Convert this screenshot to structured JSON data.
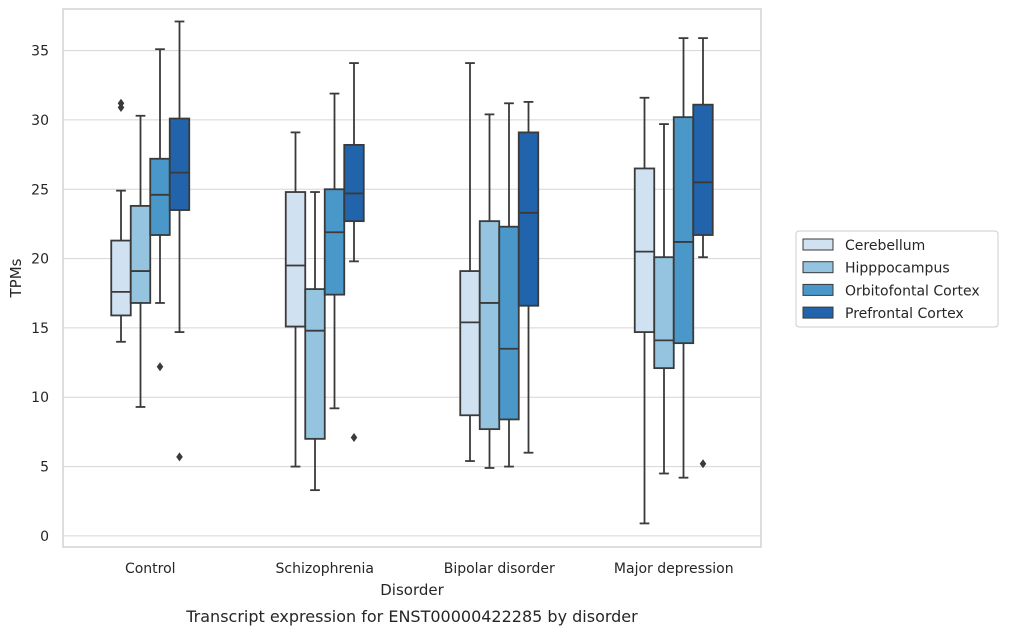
{
  "chart_data": {
    "type": "box",
    "title": "",
    "caption": "Transcript expression for ENST00000422285 by disorder",
    "xlabel": "Disorder",
    "ylabel": "TPMs",
    "ylim": [
      -0.8,
      38
    ],
    "yticks": [
      0,
      5,
      10,
      15,
      20,
      25,
      30,
      35
    ],
    "grid": "horizontal",
    "legend_position": "right",
    "categories": [
      "Control",
      "Schizophrenia",
      "Bipolar disorder",
      "Major depression"
    ],
    "series": [
      {
        "name": "Cerebellum",
        "color": "#d0e1f2",
        "boxes": [
          {
            "whislo": 14.0,
            "q1": 15.9,
            "med": 17.6,
            "q3": 21.3,
            "whishi": 24.9,
            "fliers": [
              31.2,
              30.9
            ]
          },
          {
            "whislo": 5.0,
            "q1": 15.1,
            "med": 19.5,
            "q3": 24.8,
            "whishi": 29.1,
            "fliers": []
          },
          {
            "whislo": 5.4,
            "q1": 8.7,
            "med": 15.4,
            "q3": 19.1,
            "whishi": 34.1,
            "fliers": []
          },
          {
            "whislo": 0.9,
            "q1": 14.7,
            "med": 20.5,
            "q3": 26.5,
            "whishi": 31.6,
            "fliers": []
          }
        ]
      },
      {
        "name": "Hipppocampus",
        "color": "#94c4df",
        "boxes": [
          {
            "whislo": 9.3,
            "q1": 16.8,
            "med": 19.1,
            "q3": 23.8,
            "whishi": 30.3,
            "fliers": []
          },
          {
            "whislo": 3.3,
            "q1": 7.0,
            "med": 14.8,
            "q3": 17.8,
            "whishi": 24.8,
            "fliers": []
          },
          {
            "whislo": 4.9,
            "q1": 7.7,
            "med": 16.8,
            "q3": 22.7,
            "whishi": 30.4,
            "fliers": []
          },
          {
            "whislo": 4.5,
            "q1": 12.1,
            "med": 14.1,
            "q3": 20.1,
            "whishi": 29.7,
            "fliers": []
          }
        ]
      },
      {
        "name": "Orbitofontal Cortex",
        "color": "#4a98c9",
        "boxes": [
          {
            "whislo": 16.8,
            "q1": 21.7,
            "med": 24.6,
            "q3": 27.2,
            "whishi": 35.1,
            "fliers": [
              12.2
            ]
          },
          {
            "whislo": 9.2,
            "q1": 17.4,
            "med": 21.9,
            "q3": 25.0,
            "whishi": 31.9,
            "fliers": []
          },
          {
            "whislo": 5.0,
            "q1": 8.4,
            "med": 13.5,
            "q3": 22.3,
            "whishi": 31.2,
            "fliers": []
          },
          {
            "whislo": 4.2,
            "q1": 13.9,
            "med": 21.2,
            "q3": 30.2,
            "whishi": 35.9,
            "fliers": []
          }
        ]
      },
      {
        "name": "Prefrontal Cortex",
        "color": "#2164ab",
        "boxes": [
          {
            "whislo": 14.7,
            "q1": 23.5,
            "med": 26.2,
            "q3": 30.1,
            "whishi": 37.1,
            "fliers": [
              5.7
            ]
          },
          {
            "whislo": 19.8,
            "q1": 22.7,
            "med": 24.7,
            "q3": 28.2,
            "whishi": 34.1,
            "fliers": [
              7.1
            ]
          },
          {
            "whislo": 6.0,
            "q1": 16.6,
            "med": 23.3,
            "q3": 29.1,
            "whishi": 31.3,
            "fliers": []
          },
          {
            "whislo": 20.1,
            "q1": 21.7,
            "med": 25.5,
            "q3": 31.1,
            "whishi": 35.9,
            "fliers": [
              5.2
            ]
          }
        ]
      }
    ]
  }
}
